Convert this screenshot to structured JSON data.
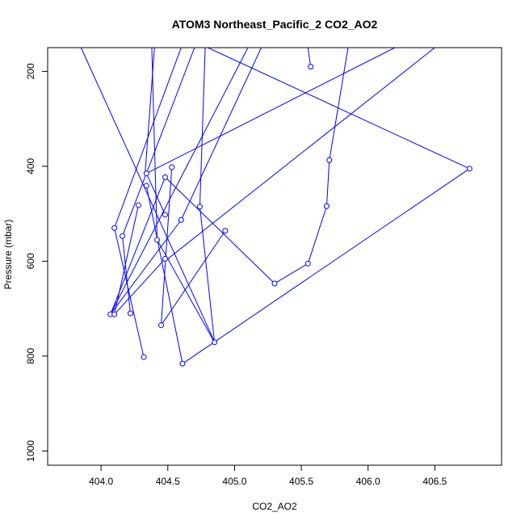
{
  "chart_data": {
    "type": "line",
    "title": "ATOM3 Northeast_Pacific_2 CO2_AO2",
    "xlabel": "CO2_AO2",
    "ylabel": "Pressure (mbar)",
    "xlim": [
      403.6,
      407.0
    ],
    "ylim": [
      1030,
      150
    ],
    "y_reversed": true,
    "x_ticks": [
      404.0,
      404.5,
      405.0,
      405.5,
      406.0,
      406.5
    ],
    "x_tick_labels": [
      "404.0",
      "404.5",
      "405.0",
      "405.5",
      "406.0",
      "406.5"
    ],
    "y_ticks": [
      200,
      400,
      600,
      800,
      1000
    ],
    "y_tick_labels": [
      "200",
      "400",
      "600",
      "800",
      "1000"
    ],
    "series_color": "#0000ff",
    "lines_out": [
      [
        [
          403.85,
          150
        ],
        [
          404.85,
          770
        ]
      ],
      [
        [
          404.4,
          150
        ],
        [
          404.33,
          415
        ]
      ],
      [
        [
          404.38,
          150
        ],
        [
          404.42,
          555
        ]
      ],
      [
        [
          404.6,
          150
        ],
        [
          404.1,
          530
        ]
      ],
      [
        [
          404.78,
          150
        ],
        [
          404.74,
          485
        ]
      ],
      [
        [
          404.8,
          150
        ],
        [
          406.76,
          405
        ]
      ],
      [
        [
          405.1,
          150
        ],
        [
          404.07,
          712
        ]
      ],
      [
        [
          405.2,
          150
        ],
        [
          404.6,
          513
        ]
      ],
      [
        [
          405.55,
          150
        ],
        [
          405.57,
          190
        ]
      ],
      [
        [
          406.2,
          150
        ],
        [
          404.34,
          415
        ]
      ],
      [
        [
          405.85,
          150
        ],
        [
          405.71,
          387
        ]
      ],
      [
        [
          406.5,
          150
        ],
        [
          404.5,
          595
        ]
      ],
      [
        [
          404.7,
          150
        ],
        [
          404.16,
          547
        ]
      ]
    ],
    "points": [
      {
        "x": 405.57,
        "y": 190
      },
      {
        "x": 405.71,
        "y": 387
      },
      {
        "x": 406.76,
        "y": 405
      },
      {
        "x": 404.53,
        "y": 402
      },
      {
        "x": 404.34,
        "y": 415
      },
      {
        "x": 404.48,
        "y": 423
      },
      {
        "x": 404.34,
        "y": 441
      },
      {
        "x": 404.28,
        "y": 482
      },
      {
        "x": 404.74,
        "y": 485
      },
      {
        "x": 405.69,
        "y": 484
      },
      {
        "x": 404.48,
        "y": 502
      },
      {
        "x": 404.6,
        "y": 513
      },
      {
        "x": 404.1,
        "y": 530
      },
      {
        "x": 404.93,
        "y": 536
      },
      {
        "x": 404.16,
        "y": 547
      },
      {
        "x": 404.42,
        "y": 555
      },
      {
        "x": 404.48,
        "y": 595
      },
      {
        "x": 405.55,
        "y": 605
      },
      {
        "x": 405.3,
        "y": 647
      },
      {
        "x": 404.07,
        "y": 712
      },
      {
        "x": 404.1,
        "y": 712
      },
      {
        "x": 404.22,
        "y": 710
      },
      {
        "x": 404.45,
        "y": 735
      },
      {
        "x": 404.85,
        "y": 771
      },
      {
        "x": 404.32,
        "y": 802
      },
      {
        "x": 404.61,
        "y": 816
      }
    ],
    "segments": [
      [
        [
          404.61,
          816
        ],
        [
          406.76,
          405
        ]
      ],
      [
        [
          404.53,
          402
        ],
        [
          404.45,
          735
        ]
      ],
      [
        [
          404.48,
          423
        ],
        [
          405.3,
          647
        ]
      ],
      [
        [
          404.34,
          441
        ],
        [
          404.61,
          816
        ]
      ],
      [
        [
          404.28,
          482
        ],
        [
          404.1,
          712
        ]
      ],
      [
        [
          404.74,
          485
        ],
        [
          404.85,
          771
        ]
      ],
      [
        [
          405.69,
          484
        ],
        [
          405.55,
          605
        ]
      ],
      [
        [
          405.55,
          605
        ],
        [
          405.3,
          647
        ]
      ],
      [
        [
          405.71,
          387
        ],
        [
          405.69,
          484
        ]
      ],
      [
        [
          404.48,
          502
        ],
        [
          404.34,
          415
        ]
      ],
      [
        [
          404.6,
          513
        ],
        [
          404.07,
          712
        ]
      ],
      [
        [
          404.1,
          530
        ],
        [
          404.32,
          802
        ]
      ],
      [
        [
          404.93,
          536
        ],
        [
          404.45,
          735
        ]
      ],
      [
        [
          404.16,
          547
        ],
        [
          404.22,
          710
        ]
      ],
      [
        [
          404.42,
          555
        ],
        [
          404.85,
          771
        ]
      ],
      [
        [
          404.48,
          595
        ],
        [
          404.1,
          712
        ]
      ],
      [
        [
          404.48,
          423
        ],
        [
          404.07,
          712
        ]
      ]
    ]
  }
}
